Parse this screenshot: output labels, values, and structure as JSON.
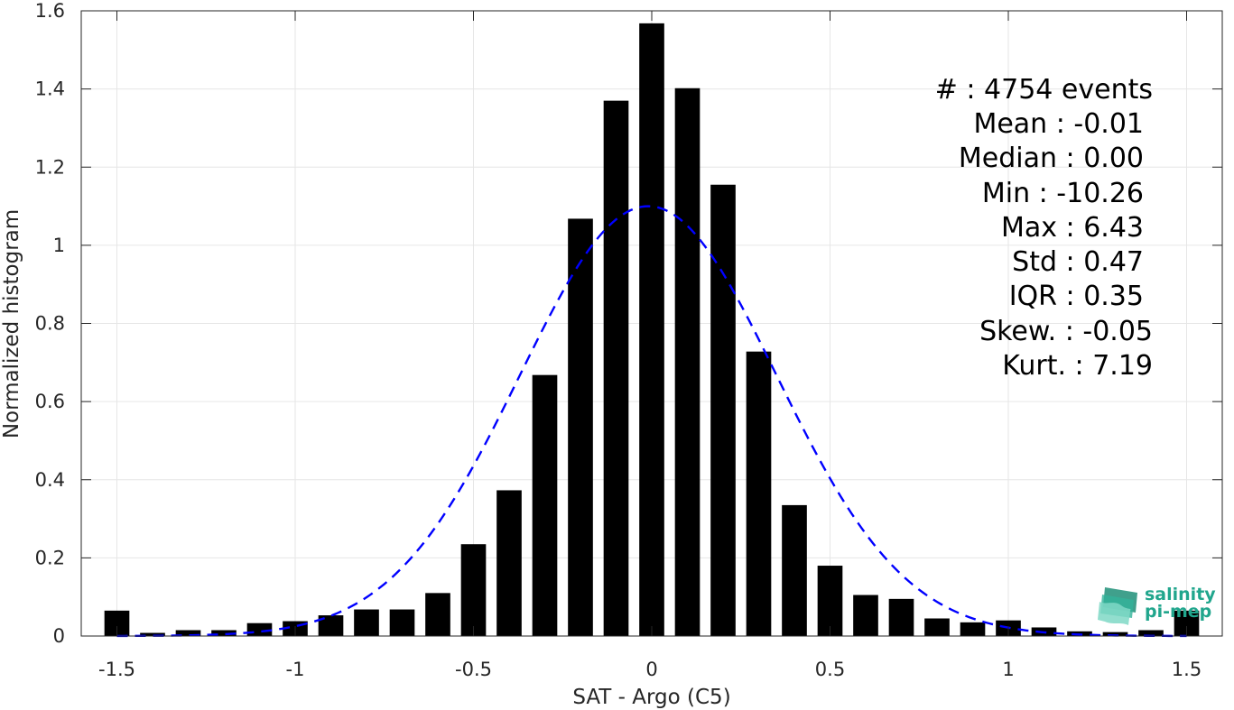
{
  "chart_data": {
    "type": "bar",
    "xlabel": "SAT - Argo (C5)",
    "ylabel": "Normalized histogram",
    "xlim": [
      -1.6,
      1.6
    ],
    "ylim": [
      0,
      1.6
    ],
    "x_ticks": [
      -1.5,
      -1,
      -0.5,
      0,
      0.5,
      1,
      1.5
    ],
    "x_tick_labels": [
      "-1.5",
      "-1",
      "-0.5",
      "0",
      "0.5",
      "1",
      "1.5"
    ],
    "y_ticks": [
      0,
      0.2,
      0.4,
      0.6,
      0.8,
      1,
      1.2,
      1.4,
      1.6
    ],
    "y_tick_labels": [
      "0",
      "0.2",
      "0.4",
      "0.6",
      "0.8",
      "1",
      "1.2",
      "1.4",
      "1.6"
    ],
    "grid": true,
    "bin_width": 0.1,
    "bar_color": "#000000",
    "bins": [
      {
        "x": -1.5,
        "y": 0.065
      },
      {
        "x": -1.4,
        "y": 0.008
      },
      {
        "x": -1.3,
        "y": 0.015
      },
      {
        "x": -1.2,
        "y": 0.015
      },
      {
        "x": -1.1,
        "y": 0.033
      },
      {
        "x": -1.0,
        "y": 0.038
      },
      {
        "x": -0.9,
        "y": 0.053
      },
      {
        "x": -0.8,
        "y": 0.068
      },
      {
        "x": -0.7,
        "y": 0.068
      },
      {
        "x": -0.6,
        "y": 0.11
      },
      {
        "x": -0.5,
        "y": 0.235
      },
      {
        "x": -0.4,
        "y": 0.373
      },
      {
        "x": -0.3,
        "y": 0.668
      },
      {
        "x": -0.2,
        "y": 1.068
      },
      {
        "x": -0.1,
        "y": 1.37
      },
      {
        "x": 0.0,
        "y": 1.568
      },
      {
        "x": 0.1,
        "y": 1.402
      },
      {
        "x": 0.2,
        "y": 1.155
      },
      {
        "x": 0.3,
        "y": 0.728
      },
      {
        "x": 0.4,
        "y": 0.335
      },
      {
        "x": 0.5,
        "y": 0.18
      },
      {
        "x": 0.6,
        "y": 0.105
      },
      {
        "x": 0.7,
        "y": 0.095
      },
      {
        "x": 0.8,
        "y": 0.045
      },
      {
        "x": 0.9,
        "y": 0.035
      },
      {
        "x": 1.0,
        "y": 0.04
      },
      {
        "x": 1.1,
        "y": 0.022
      },
      {
        "x": 1.2,
        "y": 0.012
      },
      {
        "x": 1.3,
        "y": 0.01
      },
      {
        "x": 1.4,
        "y": 0.015
      },
      {
        "x": 1.5,
        "y": 0.065
      }
    ],
    "fit_curve": {
      "style": "dashed",
      "color": "#0000ff",
      "mean": -0.01,
      "std": 0.36,
      "peak": 1.1,
      "x_range": [
        -1.5,
        1.5
      ]
    }
  },
  "stats": {
    "count": "#  : 4754 events",
    "mean": "Mean : -0.01",
    "median": "Median : 0.00",
    "min": "Min : -10.26",
    "max": "Max : 6.43",
    "std": "Std : 0.47",
    "iqr": "IQR : 0.35",
    "skew": "Skew. : -0.05",
    "kurt": "Kurt. : 7.19"
  },
  "logo": {
    "line1": "salinity",
    "line2": "pi-mep",
    "icon": "wave-layers-icon",
    "color": "#21a68d"
  }
}
